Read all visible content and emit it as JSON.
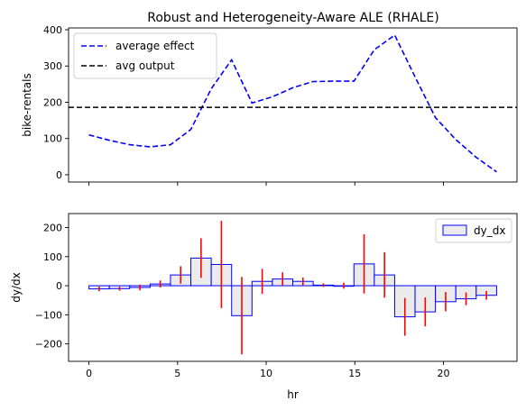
{
  "title": "Robust and Heterogeneity-Aware ALE (RHALE)",
  "chart_data": [
    {
      "type": "line",
      "ylabel": "bike-rentals",
      "xlim": [
        -1.15,
        24.15
      ],
      "ylim": [
        -20,
        405
      ],
      "yticks": [
        0,
        100,
        200,
        300,
        400
      ],
      "xticks": [
        0,
        5,
        10,
        15,
        20
      ],
      "show_xtick_labels": false,
      "legend_position": "upper-left",
      "series": [
        {
          "name": "average effect",
          "color": "#0000ff",
          "linestyle": "dashed",
          "x": [
            0,
            1.15,
            2.3,
            3.45,
            4.6,
            5.75,
            6.9,
            8.05,
            9.2,
            10.35,
            11.5,
            12.65,
            13.8,
            14.95,
            16.1,
            17.25,
            18.4,
            19.55,
            20.7,
            21.85,
            23
          ],
          "y": [
            110,
            95,
            83,
            77,
            83,
            125,
            237,
            317,
            198,
            215,
            240,
            257,
            258,
            258,
            345,
            385,
            270,
            158,
            97,
            48,
            8
          ]
        },
        {
          "name": "avg output",
          "color": "#000000",
          "linestyle": "dashed",
          "y_constant": 186
        }
      ]
    },
    {
      "type": "bar",
      "xlabel": "hr",
      "ylabel": "dy/dx",
      "xlim": [
        -1.15,
        24.15
      ],
      "ylim": [
        -260,
        248
      ],
      "yticks": [
        -200,
        -100,
        0,
        100,
        200
      ],
      "xticks": [
        0,
        5,
        10,
        15,
        20
      ],
      "legend_position": "upper-right",
      "series_name": "dy_dx",
      "bar_fill": "#ebebeb",
      "bar_edge": "#0000ff",
      "errorbar_color": "#ff0000",
      "bins": [
        {
          "start": 0,
          "end": 1.15,
          "value": -11,
          "error": 8
        },
        {
          "start": 1.15,
          "end": 2.3,
          "value": -10,
          "error": 7
        },
        {
          "start": 2.3,
          "end": 3.45,
          "value": -6,
          "error": 10
        },
        {
          "start": 3.45,
          "end": 4.6,
          "value": 6,
          "error": 12
        },
        {
          "start": 4.6,
          "end": 5.75,
          "value": 37,
          "error": 30
        },
        {
          "start": 5.75,
          "end": 6.9,
          "value": 95,
          "error": 68
        },
        {
          "start": 6.9,
          "end": 8.05,
          "value": 73,
          "error": 150
        },
        {
          "start": 8.05,
          "end": 9.2,
          "value": -103,
          "error": 133
        },
        {
          "start": 9.2,
          "end": 10.35,
          "value": 15,
          "error": 43
        },
        {
          "start": 10.35,
          "end": 11.5,
          "value": 23,
          "error": 23
        },
        {
          "start": 11.5,
          "end": 12.65,
          "value": 15,
          "error": 13
        },
        {
          "start": 12.65,
          "end": 13.8,
          "value": 2,
          "error": 6
        },
        {
          "start": 13.8,
          "end": 14.95,
          "value": 0,
          "error": 10
        },
        {
          "start": 14.95,
          "end": 16.1,
          "value": 75,
          "error": 102
        },
        {
          "start": 16.1,
          "end": 17.25,
          "value": 37,
          "error": 78
        },
        {
          "start": 17.25,
          "end": 18.4,
          "value": -107,
          "error": 65
        },
        {
          "start": 18.4,
          "end": 19.55,
          "value": -90,
          "error": 50
        },
        {
          "start": 19.55,
          "end": 20.7,
          "value": -55,
          "error": 33
        },
        {
          "start": 20.7,
          "end": 21.85,
          "value": -45,
          "error": 22
        },
        {
          "start": 21.85,
          "end": 23,
          "value": -33,
          "error": 15
        }
      ]
    }
  ]
}
